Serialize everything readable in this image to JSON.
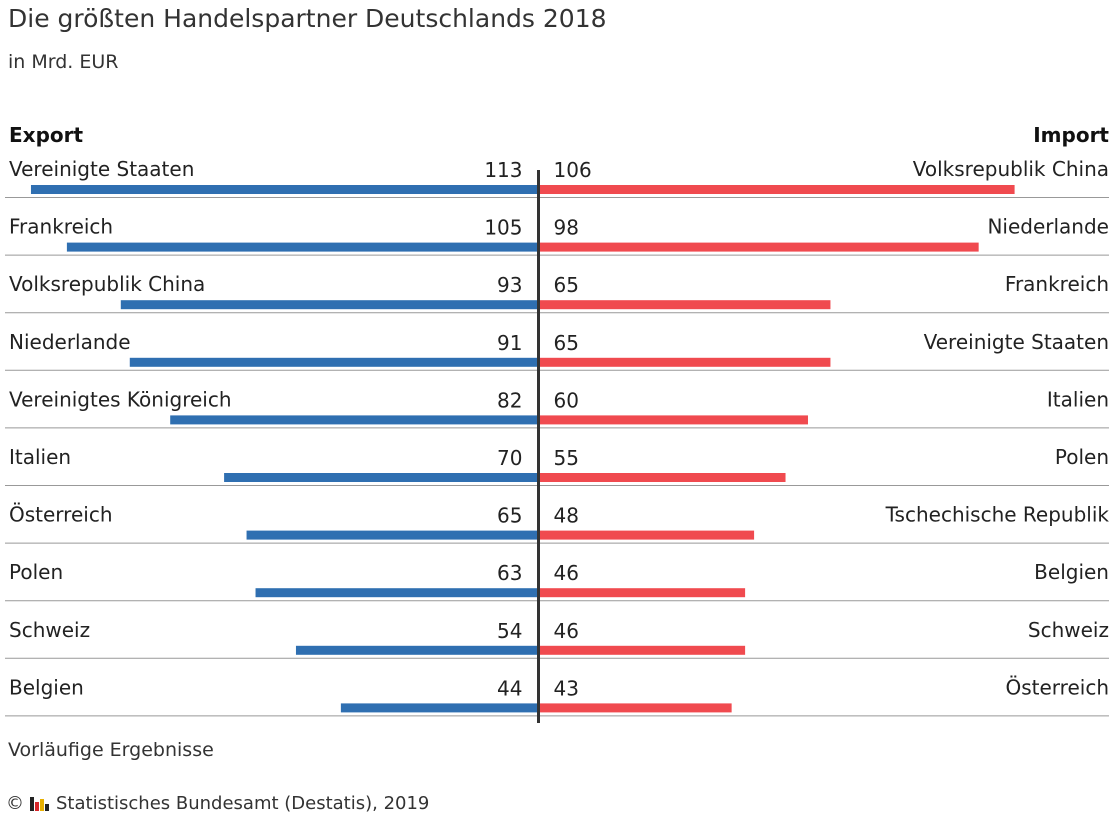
{
  "title": "Die größten Handelspartner Deutschlands 2018",
  "subtitle": "in Mrd. EUR",
  "note": "Vorläufige Ergebnisse",
  "source": {
    "copyright": "©",
    "text": "Statistisches Bundesamt (Destatis), 2019",
    "logo_colors": [
      "#222222",
      "#d6262a",
      "#e8b000",
      "#222222"
    ]
  },
  "colors": {
    "export": "#2f6fb1",
    "import": "#f04a4f",
    "axis": "#333333",
    "separator": "#999999"
  },
  "chart_data": {
    "type": "bar",
    "layout": "diverging",
    "unit": "Mrd. EUR",
    "export": {
      "label": "Export",
      "items": [
        {
          "country": "Vereinigte Staaten",
          "value": 113
        },
        {
          "country": "Frankreich",
          "value": 105
        },
        {
          "country": "Volksrepublik China",
          "value": 93
        },
        {
          "country": "Niederlande",
          "value": 91
        },
        {
          "country": "Vereinigtes Königreich",
          "value": 82
        },
        {
          "country": "Italien",
          "value": 70
        },
        {
          "country": "Österreich",
          "value": 65
        },
        {
          "country": "Polen",
          "value": 63
        },
        {
          "country": "Schweiz",
          "value": 54
        },
        {
          "country": "Belgien",
          "value": 44
        }
      ]
    },
    "import": {
      "label": "Import",
      "items": [
        {
          "country": "Volksrepublik China",
          "value": 106
        },
        {
          "country": "Niederlande",
          "value": 98
        },
        {
          "country": "Frankreich",
          "value": 65
        },
        {
          "country": "Vereinigte Staaten",
          "value": 65
        },
        {
          "country": "Italien",
          "value": 60
        },
        {
          "country": "Polen",
          "value": 55
        },
        {
          "country": "Tschechische Republik",
          "value": 48
        },
        {
          "country": "Belgien",
          "value": 46
        },
        {
          "country": "Schweiz",
          "value": 46
        },
        {
          "country": "Österreich",
          "value": 43
        }
      ]
    }
  }
}
